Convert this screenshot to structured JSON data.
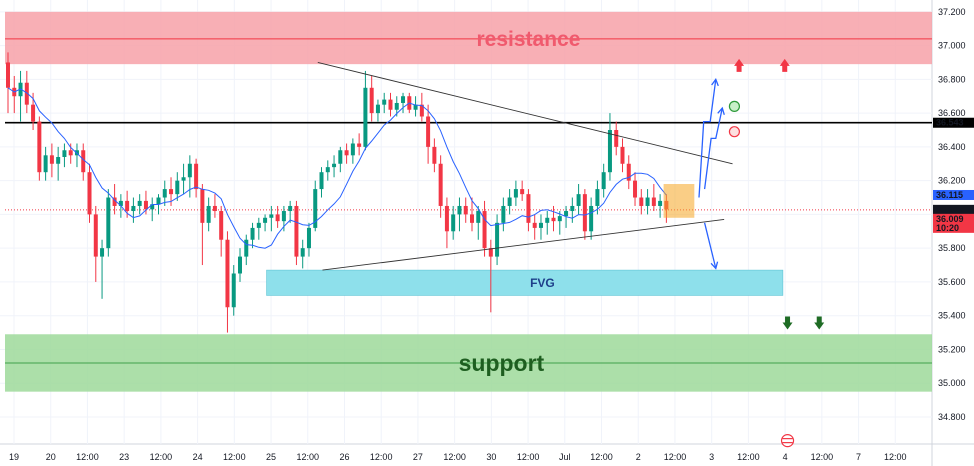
{
  "chart_data": {
    "type": "candlestick",
    "title": "",
    "xlabel": "",
    "ylabel": "",
    "ylim": [
      34.64,
      37.27
    ],
    "grid": true,
    "y_ticks": [
      "37.200",
      "37.000",
      "36.800",
      "36.600",
      "36.400",
      "36.200",
      "36.000",
      "35.800",
      "35.600",
      "35.400",
      "35.200",
      "35.000",
      "34.800"
    ],
    "x_ticks": [
      "19",
      "20",
      "12:00",
      "23",
      "12:00",
      "24",
      "12:00",
      "25",
      "12:00",
      "26",
      "12:00",
      "27",
      "12:00",
      "30",
      "12:00",
      "Jul",
      "12:00",
      "2",
      "12:00",
      "3",
      "12:00",
      "4",
      "12:00",
      "7",
      "12:00"
    ],
    "price_badges": [
      {
        "text": "36.543",
        "value": 36.543,
        "bg": "#000000"
      },
      {
        "text": "36.115",
        "value": 36.115,
        "bg": "#2962ff"
      },
      {
        "text": "36.027",
        "value": 36.027,
        "bg": "#131722"
      },
      {
        "text": "36.009",
        "value": 36.009,
        "bg": "#f23645"
      },
      {
        "text": "10:20",
        "value": 35.94,
        "bg": "#f23645"
      }
    ],
    "zones": [
      {
        "label": "resistance",
        "top": 37.2,
        "bottom": 36.89,
        "mid": 37.04,
        "fill": "#f7a1a8",
        "line": "#f23645",
        "text_color": "#f05a6e"
      },
      {
        "label": "support",
        "top": 35.29,
        "bottom": 34.95,
        "mid": 35.12,
        "fill": "#9ed99a",
        "line": "#3fa14a",
        "text_color": "#1e5e20"
      }
    ],
    "fvg": {
      "label": "FVG",
      "top": 35.67,
      "bottom": 35.52,
      "x_start": 0.286,
      "x_end": 0.84,
      "fill": "#8ee0eb"
    },
    "key_level": 36.543,
    "dotted_level": 36.027,
    "trend_lines": [
      {
        "x1": 0.341,
        "y1": 36.9,
        "x2": 0.786,
        "y2": 36.3
      },
      {
        "x1": 0.346,
        "y1": 35.67,
        "x2": 0.777,
        "y2": 35.97
      }
    ],
    "ma_color": "#2962ff",
    "up_color": "#089981",
    "down_color": "#f23645",
    "candles": [
      [
        36.9,
        36.96,
        36.6,
        36.75
      ],
      [
        36.75,
        36.82,
        36.6,
        36.7
      ],
      [
        36.7,
        36.85,
        36.55,
        36.78
      ],
      [
        36.78,
        36.85,
        36.6,
        36.65
      ],
      [
        36.65,
        36.72,
        36.5,
        36.55
      ],
      [
        36.55,
        36.58,
        36.2,
        36.25
      ],
      [
        36.25,
        36.4,
        36.2,
        36.35
      ],
      [
        36.35,
        36.42,
        36.22,
        36.3
      ],
      [
        36.3,
        36.4,
        36.2,
        36.34
      ],
      [
        36.34,
        36.42,
        36.28,
        36.38
      ],
      [
        36.38,
        36.42,
        36.3,
        36.35
      ],
      [
        36.35,
        36.42,
        36.28,
        36.38
      ],
      [
        36.38,
        36.42,
        36.2,
        36.25
      ],
      [
        36.25,
        36.3,
        35.95,
        36.0
      ],
      [
        36.0,
        36.05,
        35.6,
        35.75
      ],
      [
        35.75,
        35.85,
        35.5,
        35.8
      ],
      [
        35.8,
        36.15,
        35.75,
        36.1
      ],
      [
        36.1,
        36.18,
        36.0,
        36.05
      ],
      [
        36.05,
        36.12,
        35.98,
        36.08
      ],
      [
        36.08,
        36.14,
        35.98,
        36.02
      ],
      [
        36.02,
        36.1,
        35.95,
        36.05
      ],
      [
        36.05,
        36.12,
        36.0,
        36.08
      ],
      [
        36.08,
        36.14,
        36.0,
        36.03
      ],
      [
        36.03,
        36.1,
        35.96,
        36.06
      ],
      [
        36.06,
        36.12,
        36.0,
        36.1
      ],
      [
        36.1,
        36.2,
        36.05,
        36.15
      ],
      [
        36.15,
        36.22,
        36.05,
        36.12
      ],
      [
        36.12,
        36.25,
        36.08,
        36.2
      ],
      [
        36.2,
        36.3,
        36.12,
        36.22
      ],
      [
        36.22,
        36.35,
        36.1,
        36.3
      ],
      [
        36.3,
        36.33,
        36.1,
        36.15
      ],
      [
        36.15,
        36.18,
        35.7,
        35.95
      ],
      [
        35.95,
        36.1,
        35.9,
        36.05
      ],
      [
        36.05,
        36.12,
        35.98,
        36.02
      ],
      [
        36.02,
        36.05,
        35.75,
        35.85
      ],
      [
        35.85,
        35.9,
        35.3,
        35.45
      ],
      [
        35.45,
        35.7,
        35.4,
        35.65
      ],
      [
        35.65,
        35.8,
        35.6,
        35.75
      ],
      [
        35.75,
        35.88,
        35.7,
        35.85
      ],
      [
        35.85,
        35.95,
        35.8,
        35.92
      ],
      [
        35.92,
        35.98,
        35.85,
        35.95
      ],
      [
        35.95,
        36.0,
        35.9,
        35.98
      ],
      [
        35.98,
        36.05,
        35.9,
        36.0
      ],
      [
        36.0,
        36.05,
        35.92,
        35.96
      ],
      [
        35.96,
        36.05,
        35.9,
        36.02
      ],
      [
        36.02,
        36.08,
        35.95,
        36.05
      ],
      [
        36.05,
        36.08,
        35.7,
        35.75
      ],
      [
        35.75,
        35.85,
        35.68,
        35.8
      ],
      [
        35.8,
        35.95,
        35.75,
        35.92
      ],
      [
        35.92,
        36.2,
        35.9,
        36.15
      ],
      [
        36.15,
        36.28,
        36.1,
        36.25
      ],
      [
        36.25,
        36.32,
        36.2,
        36.28
      ],
      [
        36.28,
        36.35,
        36.22,
        36.3
      ],
      [
        36.3,
        36.4,
        36.25,
        36.38
      ],
      [
        36.38,
        36.42,
        36.3,
        36.35
      ],
      [
        36.35,
        36.45,
        36.3,
        36.42
      ],
      [
        36.42,
        36.48,
        36.35,
        36.4
      ],
      [
        36.4,
        36.85,
        36.38,
        36.75
      ],
      [
        36.75,
        36.82,
        36.55,
        36.6
      ],
      [
        36.6,
        36.68,
        36.55,
        36.65
      ],
      [
        36.65,
        36.72,
        36.6,
        36.68
      ],
      [
        36.68,
        36.72,
        36.58,
        36.62
      ],
      [
        36.62,
        36.7,
        36.58,
        36.66
      ],
      [
        36.66,
        36.72,
        36.6,
        36.7
      ],
      [
        36.7,
        36.72,
        36.6,
        36.62
      ],
      [
        36.62,
        36.7,
        36.58,
        36.65
      ],
      [
        36.65,
        36.72,
        36.55,
        36.58
      ],
      [
        36.58,
        36.65,
        36.3,
        36.4
      ],
      [
        36.4,
        36.45,
        36.25,
        36.3
      ],
      [
        36.3,
        36.35,
        35.98,
        36.05
      ],
      [
        36.05,
        36.1,
        35.8,
        35.9
      ],
      [
        35.9,
        36.05,
        35.85,
        36.0
      ],
      [
        36.0,
        36.1,
        35.9,
        36.05
      ],
      [
        36.05,
        36.1,
        35.95,
        36.0
      ],
      [
        36.0,
        36.1,
        35.9,
        35.95
      ],
      [
        35.95,
        36.05,
        35.85,
        36.02
      ],
      [
        36.02,
        36.08,
        35.75,
        35.8
      ],
      [
        35.8,
        35.85,
        35.42,
        35.75
      ],
      [
        35.75,
        36.0,
        35.7,
        35.95
      ],
      [
        35.95,
        36.1,
        35.9,
        36.05
      ],
      [
        36.05,
        36.15,
        36.0,
        36.1
      ],
      [
        36.1,
        36.2,
        36.05,
        36.15
      ],
      [
        36.15,
        36.2,
        36.08,
        36.12
      ],
      [
        36.12,
        36.15,
        35.9,
        35.95
      ],
      [
        35.95,
        36.0,
        35.85,
        35.92
      ],
      [
        35.92,
        36.0,
        35.85,
        35.95
      ],
      [
        35.95,
        36.02,
        35.88,
        35.98
      ],
      [
        35.98,
        36.05,
        35.9,
        35.96
      ],
      [
        35.96,
        36.02,
        35.88,
        35.99
      ],
      [
        35.99,
        36.05,
        35.92,
        36.02
      ],
      [
        36.02,
        36.1,
        35.95,
        36.05
      ],
      [
        36.05,
        36.18,
        36.0,
        36.12
      ],
      [
        36.12,
        36.15,
        35.85,
        35.9
      ],
      [
        35.9,
        36.1,
        35.85,
        36.05
      ],
      [
        36.05,
        36.2,
        36.0,
        36.15
      ],
      [
        36.15,
        36.3,
        36.1,
        36.25
      ],
      [
        36.25,
        36.6,
        36.2,
        36.5
      ],
      [
        36.5,
        36.55,
        36.35,
        36.4
      ],
      [
        36.4,
        36.45,
        36.25,
        36.3
      ],
      [
        36.3,
        36.35,
        36.15,
        36.2
      ],
      [
        36.2,
        36.25,
        36.05,
        36.1
      ],
      [
        36.1,
        36.15,
        36.0,
        36.05
      ],
      [
        36.05,
        36.15,
        36.0,
        36.1
      ],
      [
        36.1,
        36.18,
        36.02,
        36.05
      ],
      [
        36.05,
        36.12,
        35.98,
        36.08
      ],
      [
        36.08,
        36.12,
        35.95,
        36.03
      ]
    ]
  },
  "labels": {
    "resistance": "resistance",
    "support": "support",
    "fvg": "FVG"
  },
  "icons": [
    "up-arrow-icon",
    "down-arrow-icon",
    "circle-signal-icon",
    "flag-icon"
  ]
}
